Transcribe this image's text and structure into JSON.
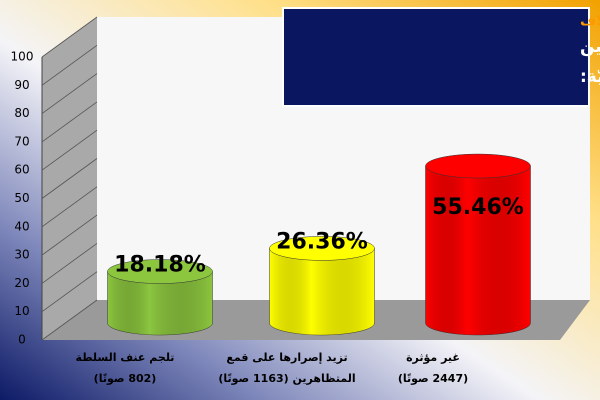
{
  "chart_data": {
    "type": "cylinder",
    "subtitle": "استفتاء إيلاف",
    "title": [
      "التطورات الأخيرة في الموقفين",
      "العربي والدولي تجاه الأزمة السوريّة:"
    ],
    "categories": [
      [
        "تلجم عنف السلطة",
        "(802 صوتًا)"
      ],
      [
        "تزيد إصرارها على قمع",
        "المتظاهرين (1163 صوتًا)"
      ],
      [
        "غير مؤثرة",
        "(2447 صوتًا)"
      ]
    ],
    "values": [
      18.18,
      26.36,
      55.46
    ],
    "value_labels": [
      "18.18%",
      "26.36%",
      "55.46%"
    ],
    "colors": [
      "#8cc63f",
      "#ffff00",
      "#ff0000"
    ],
    "ylim": [
      0,
      100
    ],
    "yticks": [
      0,
      10,
      20,
      30,
      40,
      50,
      60,
      70,
      80,
      90,
      100
    ],
    "grid": true
  }
}
